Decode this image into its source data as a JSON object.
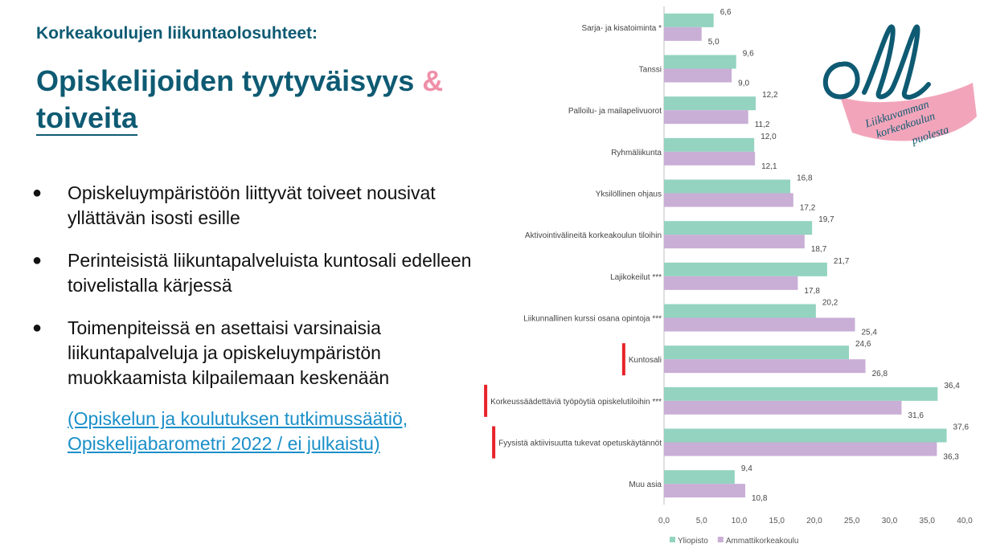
{
  "slide": {
    "subtitle": "Korkeakoulujen liikuntaolosuhteet:",
    "title_part1": "Opiskelijoiden tyytyväisyys",
    "title_amp": "&",
    "title_part2": "toiveita",
    "bullets": [
      "Opiskeluympäristöön liittyvät toiveet nousivat yllättävän isosti esille",
      "Perinteisistä liikuntapalveluista kuntosali edelleen toivelistalla kärjessä",
      "Toimenpiteissä en asettaisi varsinaisia liikuntapalveluja ja opiskeluympäristön muokkaamista kilpailemaan keskenään"
    ],
    "bullet_symbol": "●",
    "source": "(Opiskelun ja koulutuksen tutkimussäätiö, Opiskelijabarometri 2022 / ei julkaistu)"
  },
  "logo": {
    "letters": "oll",
    "line1": "Liikkuvamman",
    "line2": "korkeakoulun",
    "line3": "puolesta",
    "colors": {
      "script": "#0e5a73",
      "ribbon": "#f19bb3"
    }
  },
  "chart_data": {
    "type": "bar",
    "orientation": "horizontal",
    "categories": [
      "Sarja- ja kisatoiminta *",
      "Tanssi",
      "Palloilu- ja mailapelivuorot",
      "Ryhmäliikunta",
      "Yksilöllinen ohjaus",
      "Aktivointivälineitä korkeakoulun tiloihin",
      "Lajikokeilut ***",
      "Liikunnallinen kurssi osana opintoja ***",
      "Kuntosali",
      "Korkeussäädettäviä työpöytiä opiskelutiloihin ***",
      "Fyysistä aktiivisuutta tukevat opetuskäytännöt",
      "Muu asia"
    ],
    "series": [
      {
        "name": "Yliopisto",
        "color": "#93d3c0",
        "values": [
          6.6,
          9.6,
          12.2,
          12.0,
          16.8,
          19.7,
          21.7,
          20.2,
          24.6,
          36.4,
          37.6,
          9.4
        ],
        "labels": [
          "6,6",
          "9,6",
          "12,2",
          "12,0",
          "16,8",
          "19,7",
          "21,7",
          "20,2",
          "24,6",
          "36,4",
          "37,6",
          "9,4"
        ]
      },
      {
        "name": "Ammattikorkeakoulu",
        "color": "#c9aed6",
        "values": [
          5.0,
          9.0,
          11.2,
          12.1,
          17.2,
          18.7,
          17.8,
          25.4,
          26.8,
          31.6,
          36.3,
          10.8
        ],
        "labels": [
          "5,0",
          "9,0",
          "11,2",
          "12,1",
          "17,2",
          "18,7",
          "17,8",
          "25,4",
          "26,8",
          "31,6",
          "36,3",
          "10,8"
        ]
      }
    ],
    "xlim": [
      0,
      40
    ],
    "xticks": [
      0,
      5,
      10,
      15,
      20,
      25,
      30,
      35,
      40
    ],
    "xtick_labels": [
      "0,0",
      "5,0",
      "10,0",
      "15,0",
      "20,0",
      "25,0",
      "30,0",
      "35,0",
      "40,0"
    ],
    "legend_position": "bottom-left",
    "highlight_categories": [
      "Kuntosali",
      "Korkeussäädettäviä työpöytiä opiskelutiloihin ***",
      "Fyysistä aktiivisuutta tukevat opetuskäytännöt"
    ],
    "highlight_color": "#e8232a"
  }
}
